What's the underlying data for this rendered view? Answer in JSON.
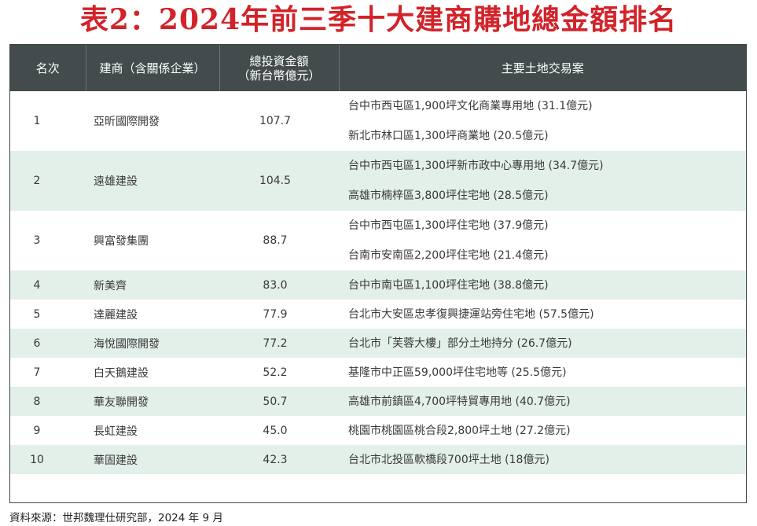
{
  "title": "表2：2024年前三季十大建商購地總金額排名",
  "headers": {
    "rank": "名次",
    "builder": "建商（含關係企業）",
    "amount_line1": "總投資金額",
    "amount_line2": "（新台幣億元）",
    "deals": "主要土地交易案"
  },
  "rows": [
    {
      "rank": "1",
      "builder": "亞昕國際開發",
      "amount": "107.7",
      "deals": [
        "台中市西屯區1,900坪文化商業專用地 (31.1億元)",
        "新北市林口區1,300坪商業地 (20.5億元)"
      ]
    },
    {
      "rank": "2",
      "builder": "遠雄建設",
      "amount": "104.5",
      "deals": [
        "台中市西屯區1,300坪新市政中心專用地 (34.7億元)",
        "高雄市楠梓區3,800坪住宅地 (28.5億元)"
      ]
    },
    {
      "rank": "3",
      "builder": "興富發集團",
      "amount": "88.7",
      "deals": [
        "台中市西屯區1,300坪住宅地 (37.9億元)",
        "台南市安南區2,200坪住宅地 (21.4億元)"
      ]
    },
    {
      "rank": "4",
      "builder": "新美齊",
      "amount": "83.0",
      "deals": [
        "台中市南屯區1,100坪住宅地 (38.8億元)"
      ]
    },
    {
      "rank": "5",
      "builder": "達麗建設",
      "amount": "77.9",
      "deals": [
        "台北市大安區忠孝復興捷運站旁住宅地 (57.5億元)"
      ]
    },
    {
      "rank": "6",
      "builder": "海悅國際開發",
      "amount": "77.2",
      "deals": [
        "台北市「芙蓉大樓」部分土地持分 (26.7億元)"
      ]
    },
    {
      "rank": "7",
      "builder": "白天鵝建設",
      "amount": "52.2",
      "deals": [
        "基隆市中正區59,000坪住宅地等 (25.5億元)"
      ]
    },
    {
      "rank": "8",
      "builder": "華友聯開發",
      "amount": "50.7",
      "deals": [
        "高雄市前鎮區4,700坪特貿專用地 (40.7億元)"
      ]
    },
    {
      "rank": "9",
      "builder": "長虹建設",
      "amount": "45.0",
      "deals": [
        "桃園市桃園區桃合段2,800坪土地 (27.2億元)"
      ]
    },
    {
      "rank": "10",
      "builder": "華固建設",
      "amount": "42.3",
      "deals": [
        "台北市北投區軟橋段700坪土地 (18億元)"
      ]
    }
  ],
  "source": "資料來源：世邦魏理仕研究部，2024 年 9 月",
  "colors": {
    "title": "#d2232a",
    "header_bg": "#434b4c",
    "stripe": "#e3efe9"
  }
}
